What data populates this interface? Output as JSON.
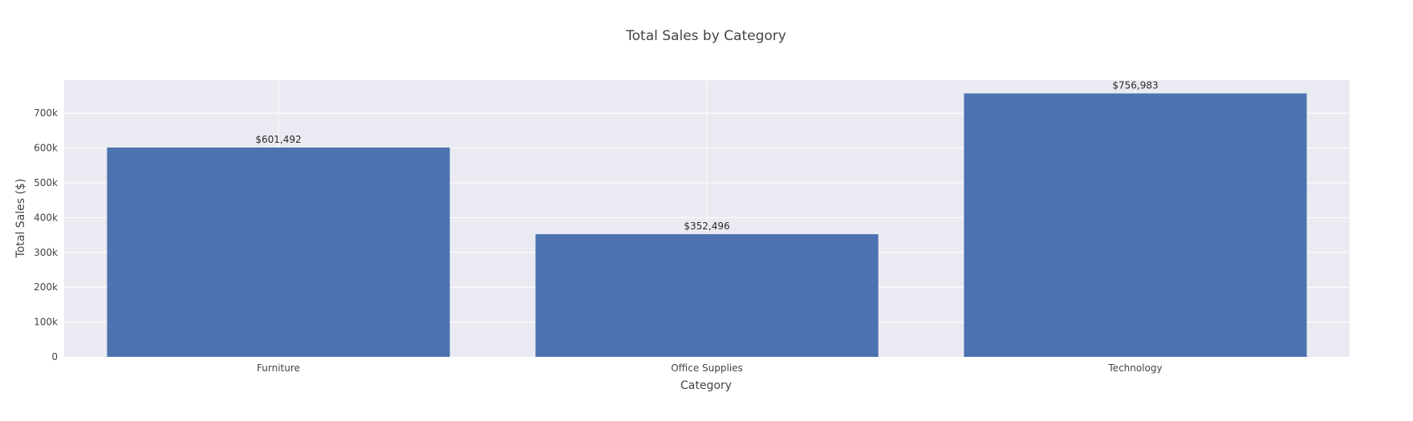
{
  "chart_data": {
    "type": "bar",
    "title": "Total Sales by Category",
    "xlabel": "Category",
    "ylabel": "Total Sales ($)",
    "categories": [
      "Furniture",
      "Office Supplies",
      "Technology"
    ],
    "values": [
      601492,
      352496,
      756983
    ],
    "data_labels": [
      "$601,492",
      "$352,496",
      "$756,983"
    ],
    "ylim": [
      0,
      795000
    ],
    "yticks": [
      0,
      100000,
      200000,
      300000,
      400000,
      500000,
      600000,
      700000
    ],
    "ytick_labels": [
      "0",
      "100k",
      "200k",
      "300k",
      "400k",
      "500k",
      "600k",
      "700k"
    ],
    "grid": true,
    "legend": "none",
    "colors": {
      "bar": "#4c72b0",
      "plot_background": "#eaeaf2",
      "grid": "#ffffff"
    }
  }
}
